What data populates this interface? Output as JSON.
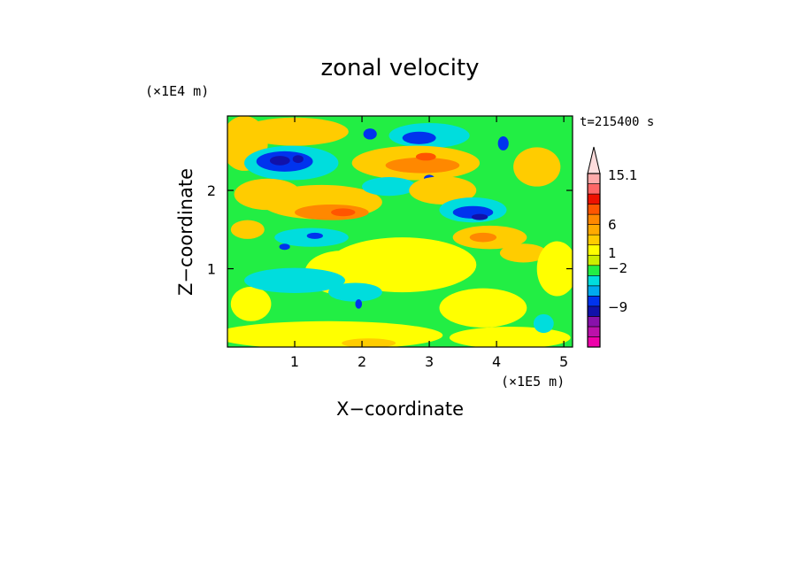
{
  "chart_data": {
    "type": "heatmap",
    "title": "zonal velocity",
    "xlabel": "X−coordinate",
    "ylabel": "Z−coordinate",
    "x_unit": "(×1E5 m)",
    "y_unit": "(×1E4 m)",
    "time_label": "t=215400 s",
    "xlim": [
      0,
      5.13
    ],
    "ylim": [
      0,
      2.95
    ],
    "x_ticks": [
      {
        "value": 1,
        "label": "1"
      },
      {
        "value": 2,
        "label": "2"
      },
      {
        "value": 3,
        "label": "3"
      },
      {
        "value": 4,
        "label": "4"
      },
      {
        "value": 5,
        "label": "5"
      }
    ],
    "y_ticks": [
      {
        "value": 1,
        "label": "1"
      },
      {
        "value": 2,
        "label": "2"
      }
    ],
    "colorbar": {
      "bins": [
        {
          "color": "#ee00aa"
        },
        {
          "color": "#bb11aa"
        },
        {
          "color": "#8811aa"
        },
        {
          "color": "#1111aa"
        },
        {
          "color": "#0033ee"
        },
        {
          "color": "#00aaee"
        },
        {
          "color": "#00dddd"
        },
        {
          "color": "#22ee44"
        },
        {
          "color": "#ccee00"
        },
        {
          "color": "#ffff00"
        },
        {
          "color": "#ffcc00"
        },
        {
          "color": "#ffaa00"
        },
        {
          "color": "#ff8800"
        },
        {
          "color": "#ff5500"
        },
        {
          "color": "#ee1100"
        },
        {
          "color": "#ff6666"
        },
        {
          "color": "#ffaaaa"
        },
        {
          "color": "#ffdddd"
        }
      ],
      "labels": [
        {
          "text": "15.1"
        },
        {
          "text": "6"
        },
        {
          "text": "1"
        },
        {
          "text": "−2"
        },
        {
          "text": "−9"
        }
      ]
    },
    "regions": [
      {
        "color": "#22ee44",
        "shape": "background"
      },
      {
        "color": "#ffcc00",
        "x": 0.25,
        "z": 2.6,
        "rx": 0.35,
        "rz": 0.35
      },
      {
        "color": "#ffcc00",
        "x": 1.0,
        "z": 2.75,
        "rx": 0.8,
        "rz": 0.18
      },
      {
        "color": "#00dddd",
        "x": 0.95,
        "z": 2.35,
        "rx": 0.7,
        "rz": 0.22
      },
      {
        "color": "#0033ee",
        "x": 0.85,
        "z": 2.37,
        "rx": 0.42,
        "rz": 0.13
      },
      {
        "color": "#1111aa",
        "x": 0.78,
        "z": 2.38,
        "rx": 0.15,
        "rz": 0.06
      },
      {
        "color": "#1111aa",
        "x": 1.05,
        "z": 2.4,
        "rx": 0.08,
        "rz": 0.05
      },
      {
        "color": "#ffcc00",
        "x": 0.6,
        "z": 1.95,
        "rx": 0.5,
        "rz": 0.2
      },
      {
        "color": "#ffcc00",
        "x": 1.4,
        "z": 1.85,
        "rx": 0.9,
        "rz": 0.22
      },
      {
        "color": "#ff8800",
        "x": 1.55,
        "z": 1.72,
        "rx": 0.55,
        "rz": 0.1
      },
      {
        "color": "#ff5500",
        "x": 1.72,
        "z": 1.72,
        "rx": 0.18,
        "rz": 0.05
      },
      {
        "color": "#ffcc00",
        "x": 0.3,
        "z": 1.5,
        "rx": 0.25,
        "rz": 0.12
      },
      {
        "color": "#00dddd",
        "x": 1.25,
        "z": 1.4,
        "rx": 0.55,
        "rz": 0.12
      },
      {
        "color": "#0033ee",
        "x": 1.3,
        "z": 1.42,
        "rx": 0.12,
        "rz": 0.04
      },
      {
        "color": "#0033ee",
        "x": 0.85,
        "z": 1.28,
        "rx": 0.08,
        "rz": 0.04
      },
      {
        "color": "#00dddd",
        "x": 3.0,
        "z": 2.7,
        "rx": 0.6,
        "rz": 0.16
      },
      {
        "color": "#0033ee",
        "x": 2.85,
        "z": 2.67,
        "rx": 0.25,
        "rz": 0.08
      },
      {
        "color": "#0033ee",
        "x": 2.12,
        "z": 2.72,
        "rx": 0.1,
        "rz": 0.07
      },
      {
        "color": "#ffcc00",
        "x": 2.8,
        "z": 2.35,
        "rx": 0.95,
        "rz": 0.22
      },
      {
        "color": "#ff8800",
        "x": 2.9,
        "z": 2.32,
        "rx": 0.55,
        "rz": 0.1
      },
      {
        "color": "#ff5500",
        "x": 2.95,
        "z": 2.43,
        "rx": 0.15,
        "rz": 0.05
      },
      {
        "color": "#00dddd",
        "x": 2.4,
        "z": 2.05,
        "rx": 0.4,
        "rz": 0.12
      },
      {
        "color": "#0033ee",
        "x": 3.0,
        "z": 2.15,
        "rx": 0.08,
        "rz": 0.05
      },
      {
        "color": "#ffcc00",
        "x": 3.2,
        "z": 2.0,
        "rx": 0.5,
        "rz": 0.18
      },
      {
        "color": "#00dddd",
        "x": 3.65,
        "z": 1.75,
        "rx": 0.5,
        "rz": 0.16
      },
      {
        "color": "#0033ee",
        "x": 3.65,
        "z": 1.72,
        "rx": 0.3,
        "rz": 0.08
      },
      {
        "color": "#1111aa",
        "x": 3.75,
        "z": 1.66,
        "rx": 0.12,
        "rz": 0.04
      },
      {
        "color": "#0033ee",
        "x": 4.1,
        "z": 2.6,
        "rx": 0.08,
        "rz": 0.09
      },
      {
        "color": "#ffcc00",
        "x": 4.6,
        "z": 2.3,
        "rx": 0.35,
        "rz": 0.25
      },
      {
        "color": "#ffcc00",
        "x": 3.9,
        "z": 1.4,
        "rx": 0.55,
        "rz": 0.15
      },
      {
        "color": "#ff8800",
        "x": 3.8,
        "z": 1.4,
        "rx": 0.2,
        "rz": 0.06
      },
      {
        "color": "#ffcc00",
        "x": 4.4,
        "z": 1.2,
        "rx": 0.35,
        "rz": 0.12
      },
      {
        "color": "#ffff00",
        "x": 2.6,
        "z": 1.05,
        "rx": 1.1,
        "rz": 0.35
      },
      {
        "color": "#ffff00",
        "x": 1.7,
        "z": 0.95,
        "rx": 0.55,
        "rz": 0.28
      },
      {
        "color": "#ffff00",
        "x": 4.9,
        "z": 1.0,
        "rx": 0.3,
        "rz": 0.35
      },
      {
        "color": "#ffff00",
        "x": 3.8,
        "z": 0.5,
        "rx": 0.65,
        "rz": 0.25
      },
      {
        "color": "#ffff00",
        "x": 0.35,
        "z": 0.55,
        "rx": 0.3,
        "rz": 0.22
      },
      {
        "color": "#ffff00",
        "x": 1.5,
        "z": 0.15,
        "rx": 1.7,
        "rz": 0.18
      },
      {
        "color": "#ffff00",
        "x": 4.2,
        "z": 0.12,
        "rx": 0.9,
        "rz": 0.14
      },
      {
        "color": "#00dddd",
        "x": 1.0,
        "z": 0.85,
        "rx": 0.75,
        "rz": 0.16
      },
      {
        "color": "#00dddd",
        "x": 1.9,
        "z": 0.7,
        "rx": 0.4,
        "rz": 0.12
      },
      {
        "color": "#0033ee",
        "x": 1.95,
        "z": 0.55,
        "rx": 0.05,
        "rz": 0.06
      },
      {
        "color": "#00dddd",
        "x": 4.7,
        "z": 0.3,
        "rx": 0.15,
        "rz": 0.12
      },
      {
        "color": "#ffcc00",
        "x": 2.1,
        "z": 0.05,
        "rx": 0.4,
        "rz": 0.06
      }
    ]
  }
}
